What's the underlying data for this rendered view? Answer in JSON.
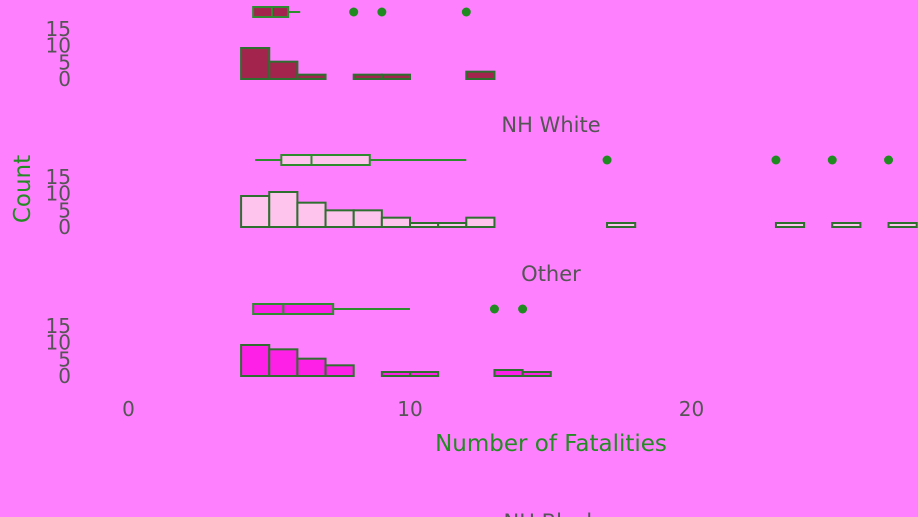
{
  "chart_data": {
    "type": "histogram",
    "xlabel": "Number of Fatalities",
    "ylabel": "Count",
    "xlim": [
      0,
      28.5
    ],
    "ylim": [
      0,
      15
    ],
    "x_ticks": [
      "0",
      "10",
      "20"
    ],
    "y_ticks": [
      "0",
      "5",
      "10",
      "15"
    ],
    "grid": false,
    "bin_width": 1,
    "panels": [
      {
        "label": "",
        "fill": "#a3254d",
        "bins": [
          {
            "x0": 4,
            "x1": 5,
            "count": 9.3
          },
          {
            "x0": 5,
            "x1": 6,
            "count": 5.2
          },
          {
            "x0": 6,
            "x1": 7,
            "count": 1.3
          },
          {
            "x0": 8,
            "x1": 9,
            "count": 1.3
          },
          {
            "x0": 9,
            "x1": 10,
            "count": 1.3
          },
          {
            "x0": 12,
            "x1": 13,
            "count": 2.2
          }
        ],
        "boxplot": {
          "whisker_low": 4.5,
          "q1": 4.5,
          "median": 5.1,
          "q3": 5.6,
          "whisker_high": 6.1,
          "outliers": [
            8,
            9,
            12
          ]
        }
      },
      {
        "label": "NH White",
        "fill": "#ffc4ee",
        "bins": [
          {
            "x0": 4,
            "x1": 5,
            "count": 9.3
          },
          {
            "x0": 5,
            "x1": 6,
            "count": 10.5
          },
          {
            "x0": 6,
            "x1": 7,
            "count": 7.3
          },
          {
            "x0": 7,
            "x1": 8,
            "count": 5.0
          },
          {
            "x0": 8,
            "x1": 9,
            "count": 5.0
          },
          {
            "x0": 9,
            "x1": 10,
            "count": 2.8
          },
          {
            "x0": 10,
            "x1": 11,
            "count": 0.8
          },
          {
            "x0": 11,
            "x1": 12,
            "count": 0.8
          },
          {
            "x0": 12,
            "x1": 13,
            "count": 2.8
          },
          {
            "x0": 17,
            "x1": 18,
            "count": 0.8
          },
          {
            "x0": 23,
            "x1": 24,
            "count": 0.8
          },
          {
            "x0": 25,
            "x1": 26,
            "count": 0.8
          },
          {
            "x0": 27,
            "x1": 28,
            "count": 0.8
          }
        ],
        "boxplot": {
          "whisker_low": 4.5,
          "q1": 5.5,
          "median": 6.5,
          "q3": 8.5,
          "whisker_high": 12,
          "outliers": [
            17,
            23,
            25,
            27
          ]
        }
      },
      {
        "label": "Other",
        "fill": "#ff20e8",
        "bins": [
          {
            "x0": 4,
            "x1": 5,
            "count": 9.3
          },
          {
            "x0": 5,
            "x1": 6,
            "count": 8.0
          },
          {
            "x0": 6,
            "x1": 7,
            "count": 5.2
          },
          {
            "x0": 7,
            "x1": 8,
            "count": 3.2
          },
          {
            "x0": 9,
            "x1": 10,
            "count": 0.8
          },
          {
            "x0": 10,
            "x1": 11,
            "count": 0.8
          },
          {
            "x0": 13,
            "x1": 14,
            "count": 1.8
          },
          {
            "x0": 14,
            "x1": 15,
            "count": 0.8
          }
        ],
        "boxplot": {
          "whisker_low": 4.5,
          "q1": 4.5,
          "median": 5.5,
          "q3": 7.2,
          "whisker_high": 10,
          "outliers": [
            13,
            14
          ]
        }
      },
      {
        "label": "NH Black",
        "fill": "#a3254d",
        "bins": [],
        "boxplot": null
      }
    ],
    "colors": {
      "background": "#ff80ff",
      "outline": "#2e6e2e",
      "boxplot": "#2e8b2e",
      "outlier": "#1f8a1f",
      "tick_text": "#555555",
      "axis_title": "#228b22"
    }
  }
}
